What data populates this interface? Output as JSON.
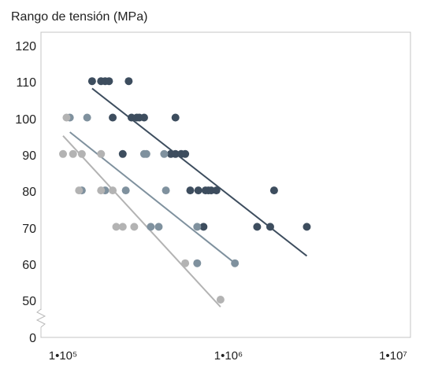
{
  "chart_data": {
    "type": "scatter",
    "ylabel": "Rango de tensión (MPa)",
    "xscale": "log",
    "xlim": [
      100000,
      10000000
    ],
    "ylim": [
      45,
      120
    ],
    "axis_break": "y between 0 and 50",
    "grid": false,
    "y_ticks": [
      "120",
      "110",
      "100",
      "90",
      "80",
      "70",
      "60",
      "50",
      "0"
    ],
    "x_ticks": [
      "1•10⁵",
      "1•10⁶",
      "1•10⁷"
    ],
    "series": [
      {
        "color": "#3d4d5e",
        "points": [
          [
            150000,
            110
          ],
          [
            170000,
            110
          ],
          [
            180000,
            110
          ],
          [
            190000,
            110
          ],
          [
            250000,
            110
          ],
          [
            200000,
            100
          ],
          [
            260000,
            100
          ],
          [
            280000,
            100
          ],
          [
            290000,
            100
          ],
          [
            310000,
            100
          ],
          [
            480000,
            100
          ],
          [
            230000,
            90
          ],
          [
            450000,
            90
          ],
          [
            480000,
            90
          ],
          [
            520000,
            90
          ],
          [
            550000,
            90
          ],
          [
            590000,
            80
          ],
          [
            660000,
            80
          ],
          [
            730000,
            80
          ],
          [
            760000,
            80
          ],
          [
            790000,
            80
          ],
          [
            850000,
            80
          ],
          [
            1900000,
            80
          ],
          [
            710000,
            70
          ],
          [
            1500000,
            70
          ],
          [
            1800000,
            70
          ],
          [
            3000000,
            70
          ]
        ],
        "fit": [
          [
            150000,
            108
          ],
          [
            3000000,
            62
          ]
        ]
      },
      {
        "color": "#7f919e",
        "points": [
          [
            110000,
            100
          ],
          [
            140000,
            100
          ],
          [
            310000,
            90
          ],
          [
            320000,
            90
          ],
          [
            410000,
            90
          ],
          [
            130000,
            80
          ],
          [
            180000,
            80
          ],
          [
            240000,
            80
          ],
          [
            420000,
            80
          ],
          [
            340000,
            70
          ],
          [
            380000,
            70
          ],
          [
            650000,
            70
          ],
          [
            650000,
            60
          ],
          [
            1100000,
            60
          ]
        ],
        "fit": [
          [
            110000,
            96
          ],
          [
            1100000,
            60
          ]
        ]
      },
      {
        "color": "#b3b3b3",
        "points": [
          [
            105000,
            100
          ],
          [
            100000,
            90
          ],
          [
            115000,
            90
          ],
          [
            130000,
            90
          ],
          [
            170000,
            90
          ],
          [
            125000,
            80
          ],
          [
            170000,
            80
          ],
          [
            200000,
            80
          ],
          [
            210000,
            70
          ],
          [
            230000,
            70
          ],
          [
            270000,
            70
          ],
          [
            550000,
            60
          ],
          [
            900000,
            50
          ]
        ],
        "fit": [
          [
            100000,
            95
          ],
          [
            900000,
            48
          ]
        ]
      }
    ]
  }
}
